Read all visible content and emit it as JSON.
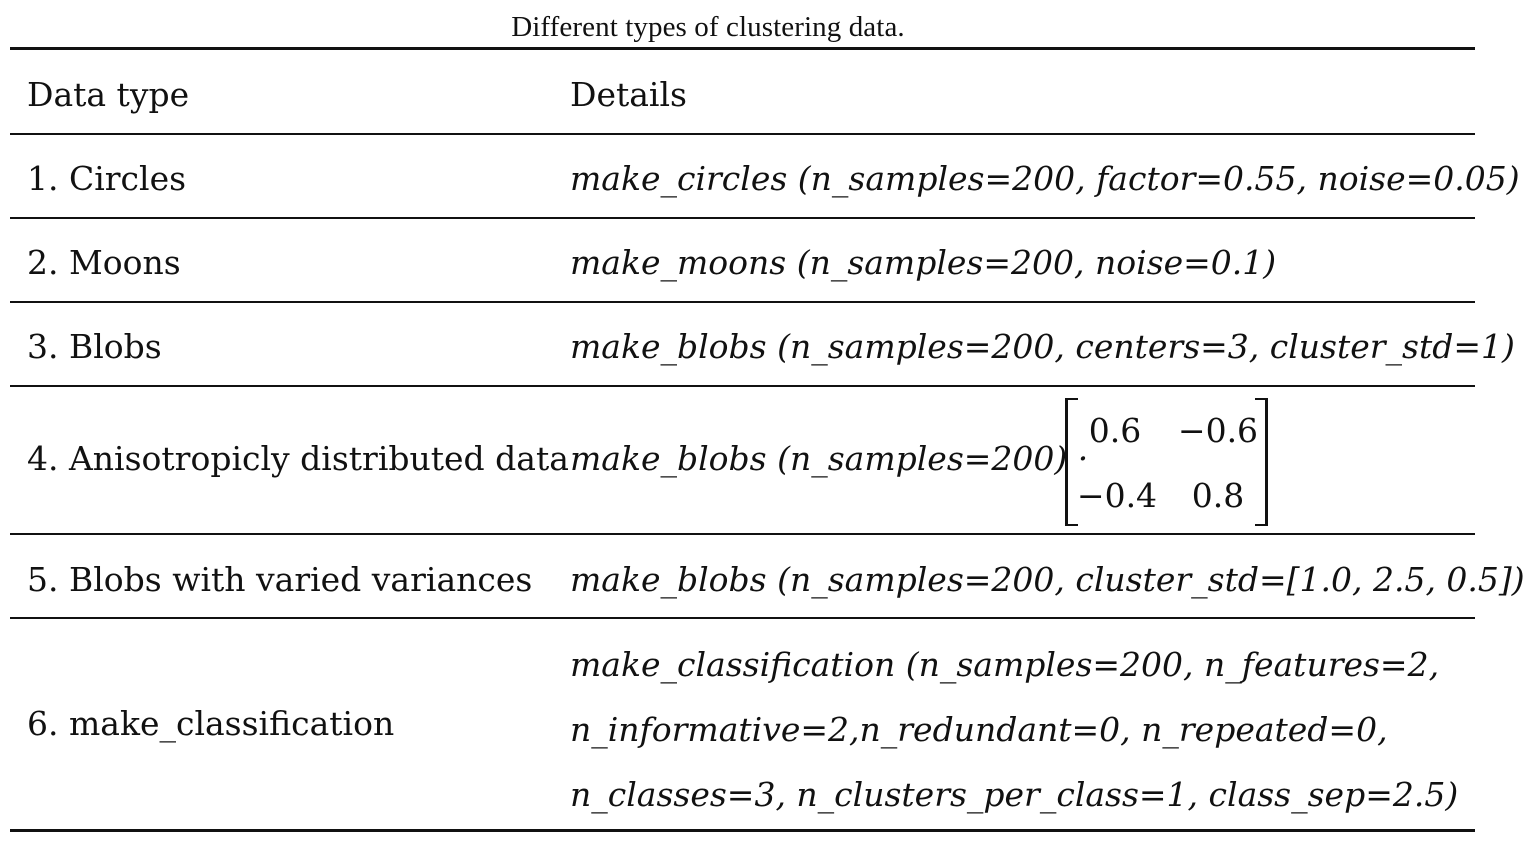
{
  "caption": "Different types of clustering data.",
  "header": {
    "col1": "Data type",
    "col2": "Details"
  },
  "rows": [
    {
      "type": "1. Circles",
      "details": [
        "make_circles (n_samples=200, factor=0.55, noise=0.05)"
      ]
    },
    {
      "type": "2. Moons",
      "details": [
        "make_moons (n_samples=200, noise=0.1)"
      ]
    },
    {
      "type": "3. Blobs",
      "details": [
        "make_blobs (n_samples=200, centers=3, cluster_std=1)"
      ]
    },
    {
      "type": "4. Anisotropicly distributed data",
      "details": [
        "make_blobs (n_samples=200) ·"
      ],
      "matrix": [
        [
          "0.6",
          "−0.6"
        ],
        [
          "−0.4",
          "0.8"
        ]
      ]
    },
    {
      "type": "5. Blobs with varied variances",
      "details": [
        "make_blobs (n_samples=200, cluster_std=[1.0, 2.5, 0.5])"
      ]
    },
    {
      "type": "6. make_classification",
      "details": [
        "make_classification (n_samples=200, n_features=2,",
        "n_informative=2,n_redundant=0, n_repeated=0,",
        "n_classes=3, n_clusters_per_class=1, class_sep=2.5)"
      ]
    }
  ]
}
